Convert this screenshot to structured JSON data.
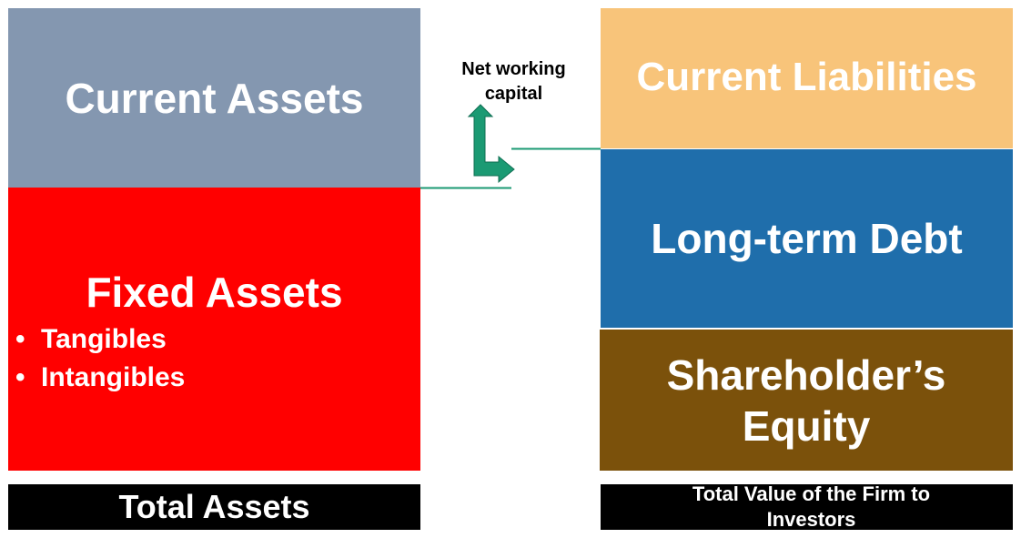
{
  "left_column": {
    "current_assets": "Current Assets",
    "fixed_assets": {
      "title": "Fixed Assets",
      "items": [
        "Tangibles",
        "Intangibles"
      ]
    },
    "total_label": "Total Assets"
  },
  "right_column": {
    "current_liabilities": "Current Liabilities",
    "long_term_debt": "Long-term Debt",
    "shareholders_equity_line1": "Shareholder’s",
    "shareholders_equity_line2": "Equity",
    "total_label": "Total Value of the Firm to Investors"
  },
  "annotation": {
    "net_working_capital": "Net working capital"
  },
  "colors": {
    "current_assets": "#8497b0",
    "fixed_assets": "#ff0000",
    "current_liabilities": "#f8c47a",
    "long_term_debt": "#1f6eab",
    "shareholders_equity": "#7b510b",
    "totals_bar": "#000000",
    "connector": "#1b9a73"
  },
  "icons": {
    "arrow": "double-ended-bent-arrow-icon"
  }
}
